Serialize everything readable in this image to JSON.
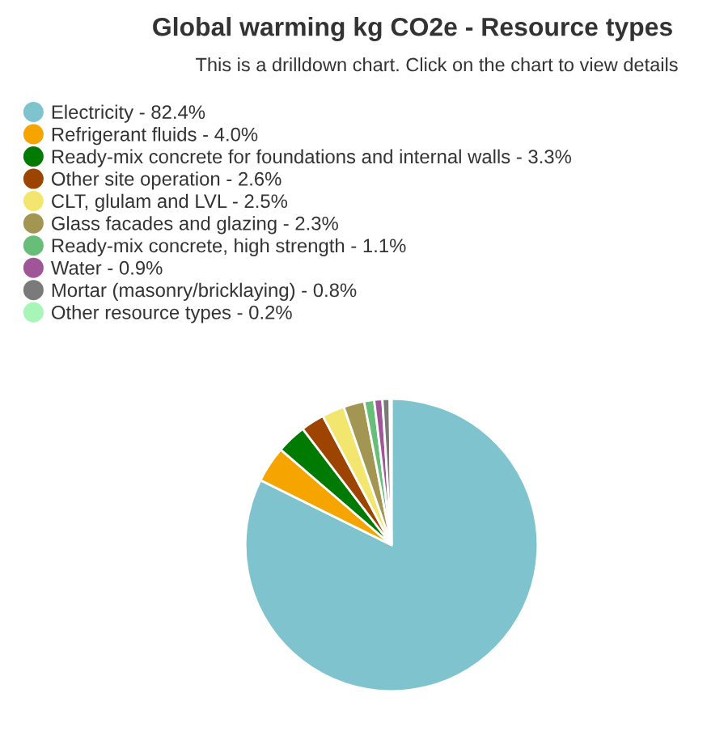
{
  "chart_data": {
    "type": "pie",
    "title": "Global warming kg CO2e - Resource types",
    "subtitle": "This is a drilldown chart. Click on the chart to view details",
    "categories": [
      "Electricity",
      "Refrigerant fluids",
      "Ready-mix concrete for foundations and internal walls",
      "Other site operation",
      "CLT, glulam and LVL",
      "Glass facades and glazing",
      "Ready-mix concrete, high strength",
      "Water",
      "Mortar (masonry/bricklaying)",
      "Other resource types"
    ],
    "values": [
      82.4,
      4.0,
      3.3,
      2.6,
      2.5,
      2.3,
      1.1,
      0.9,
      0.8,
      0.2
    ],
    "value_labels": [
      "82.4%",
      "4.0%",
      "3.3%",
      "2.6%",
      "2.5%",
      "2.3%",
      "1.1%",
      "0.9%",
      "0.8%",
      "0.2%"
    ],
    "colors": [
      "#7fc3ce",
      "#f5a400",
      "#007a00",
      "#9c4400",
      "#f3e66f",
      "#a39552",
      "#66be78",
      "#a05598",
      "#7a7a7a",
      "#a8f5b8"
    ],
    "legend": "top left"
  }
}
